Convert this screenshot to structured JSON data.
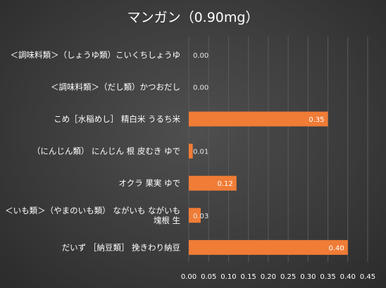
{
  "chart_data": {
    "type": "bar",
    "orientation": "horizontal",
    "title": "マンガン（0.90mg）",
    "categories": [
      [
        "＜調味料類＞（しょうゆ類）こいくちしょうゆ"
      ],
      [
        "＜調味料類＞（だし類）かつおだし"
      ],
      [
        "こめ［水稲めし］ 精白米 うるち米"
      ],
      [
        "（にんじん類） にんじん 根 皮むき ゆで"
      ],
      [
        "オクラ 果実 ゆで"
      ],
      [
        "＜いも類＞（やまのいも類） ながいも ながいも",
        "塊根 生"
      ],
      [
        "だいず ［納豆類］ 挽きわり納豆"
      ]
    ],
    "values": [
      0.0,
      0.0,
      0.35,
      0.01,
      0.12,
      0.03,
      0.4
    ],
    "value_labels": [
      "0.00",
      "0.00",
      "0.35",
      "0.01",
      "0.12",
      "0.03",
      "0.40"
    ],
    "xlim": [
      0,
      0.45
    ],
    "xticks": [
      "0.00",
      "0.05",
      "0.10",
      "0.15",
      "0.20",
      "0.25",
      "0.30",
      "0.35",
      "0.40",
      "0.45"
    ],
    "grid": "vertical",
    "bar_color": "#f07c36",
    "legend": "none"
  }
}
